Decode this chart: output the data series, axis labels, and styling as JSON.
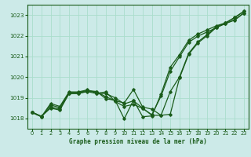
{
  "title": "Graphe pression niveau de la mer (hPa)",
  "background_color": "#cceae8",
  "grid_color": "#aaddcc",
  "line_color": "#1a5c1a",
  "xlim": [
    -0.5,
    23.5
  ],
  "ylim": [
    1017.5,
    1023.5
  ],
  "yticks": [
    1018,
    1019,
    1020,
    1021,
    1022,
    1023
  ],
  "xticks": [
    0,
    1,
    2,
    3,
    4,
    5,
    6,
    7,
    8,
    9,
    10,
    11,
    12,
    13,
    14,
    15,
    16,
    17,
    18,
    19,
    20,
    21,
    22,
    23
  ],
  "series": [
    [
      1018.3,
      1018.1,
      1018.5,
      1018.4,
      1019.2,
      1019.2,
      1019.3,
      1019.2,
      1019.2,
      1019.0,
      1018.7,
      1018.85,
      1018.5,
      1018.15,
      1018.15,
      1019.3,
      1020.0,
      1021.15,
      1021.7,
      1022.05,
      1022.45,
      1022.6,
      1022.75,
      1023.1
    ],
    [
      1018.3,
      1018.1,
      1018.55,
      1018.45,
      1019.22,
      1019.22,
      1019.32,
      1019.28,
      1019.05,
      1018.85,
      1018.75,
      1019.4,
      1018.55,
      1018.45,
      1018.15,
      1018.2,
      1019.95,
      1021.1,
      1021.65,
      1022.0,
      1022.4,
      1022.58,
      1022.78,
      1023.1
    ],
    [
      1018.28,
      1018.08,
      1018.65,
      1018.52,
      1019.25,
      1019.25,
      1019.35,
      1019.3,
      1018.95,
      1018.88,
      1017.98,
      1018.88,
      1018.08,
      1018.12,
      1019.18,
      1020.48,
      1021.08,
      1021.78,
      1022.08,
      1022.28,
      1022.48,
      1022.62,
      1022.88,
      1023.18
    ],
    [
      1018.28,
      1018.08,
      1018.72,
      1018.58,
      1019.28,
      1019.28,
      1019.38,
      1019.22,
      1019.28,
      1018.82,
      1018.58,
      1018.68,
      1018.48,
      1018.18,
      1019.08,
      1020.28,
      1020.98,
      1021.68,
      1021.98,
      1022.18,
      1022.38,
      1022.62,
      1022.88,
      1023.18
    ]
  ]
}
